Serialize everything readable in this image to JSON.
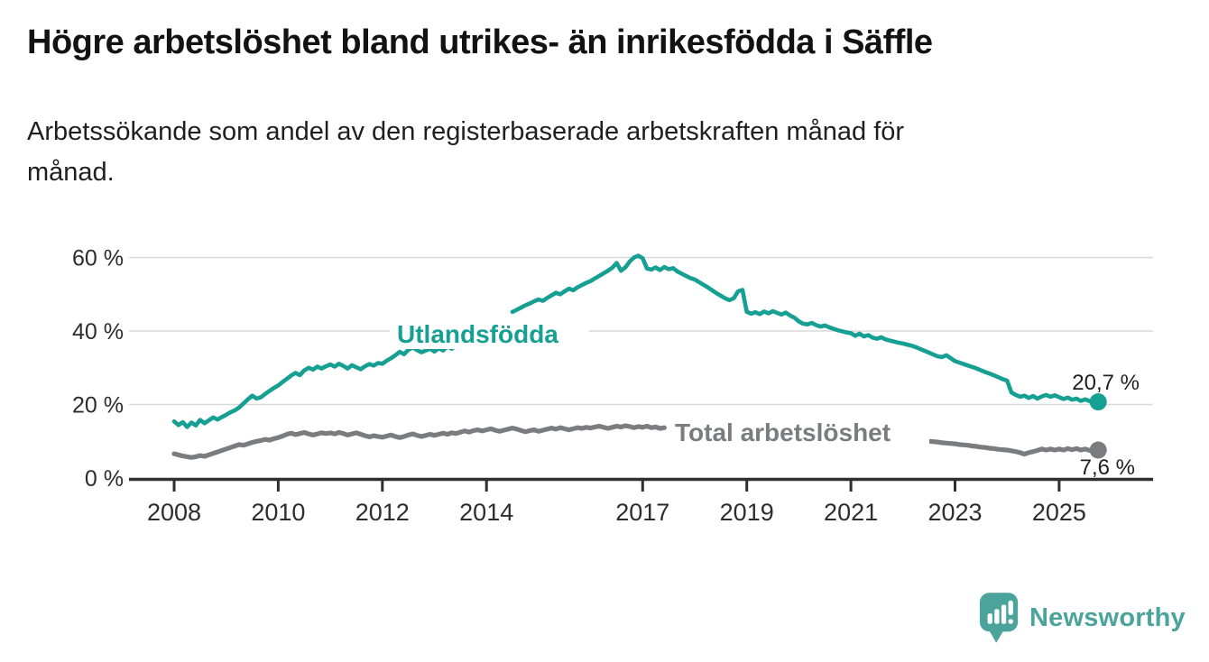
{
  "chart_data": {
    "type": "line",
    "title": "Högre arbetslöshet bland utrikes- än inrikesfödda i Säffle",
    "subtitle": "Arbetssökande som andel av den registerbaserade arbetskraften månad för månad.",
    "subtitle_lines": [
      "Arbetssökande som andel av den registerbaserade arbetskraften månad för",
      "månad."
    ],
    "x_start": "2008-01",
    "x_end": "2025-10",
    "months_per_point": 1,
    "x_ticks": [
      {
        "year": 2008,
        "label": "2008"
      },
      {
        "year": 2010,
        "label": "2010"
      },
      {
        "year": 2012,
        "label": "2012"
      },
      {
        "year": 2014,
        "label": "2014"
      },
      {
        "year": 2017,
        "label": "2017"
      },
      {
        "year": 2019,
        "label": "2019"
      },
      {
        "year": 2021,
        "label": "2021"
      },
      {
        "year": 2023,
        "label": "2023"
      },
      {
        "year": 2025,
        "label": "2025"
      }
    ],
    "y_ticks": [
      {
        "value": 0,
        "label": "0 %"
      },
      {
        "value": 20,
        "label": "20 %"
      },
      {
        "value": 40,
        "label": "40 %"
      },
      {
        "value": 60,
        "label": "60 %"
      }
    ],
    "ylim": [
      0,
      63
    ],
    "grid": "horizontal",
    "legend_position": "inline-labels",
    "series": [
      {
        "name": "Utlandsfödda",
        "color": "#169f93",
        "end_value": 20.7,
        "end_label": "20,7 %",
        "values": [
          15.4,
          14.4,
          15.2,
          13.9,
          15.1,
          14.3,
          15.8,
          14.9,
          15.7,
          16.5,
          15.9,
          16.6,
          17.2,
          17.9,
          18.4,
          19.2,
          20.3,
          21.4,
          22.4,
          21.6,
          22.0,
          22.9,
          23.7,
          24.5,
          25.2,
          26.1,
          27.0,
          27.9,
          28.6,
          28.0,
          29.3,
          30.0,
          29.5,
          30.3,
          29.8,
          30.4,
          30.9,
          30.3,
          31.1,
          30.5,
          29.8,
          30.7,
          30.1,
          29.6,
          30.4,
          31.0,
          30.6,
          31.3,
          31.1,
          31.9,
          32.6,
          33.4,
          34.3,
          33.7,
          34.9,
          35.5,
          34.8,
          34.2,
          34.7,
          35.2,
          34.4,
          35.3,
          34.7,
          35.8,
          35.2,
          35.9,
          36.3,
          36.0,
          36.6,
          37.1,
          37.8,
          38.6,
          39.5,
          40.6,
          41.7,
          42.8,
          43.8,
          44.6,
          45.2,
          45.8,
          46.4,
          47.0,
          47.5,
          48.1,
          48.6,
          48.2,
          49.0,
          49.7,
          50.4,
          50.0,
          50.8,
          51.5,
          51.1,
          51.9,
          52.5,
          53.1,
          53.6,
          54.3,
          55.0,
          55.7,
          56.4,
          57.2,
          58.5,
          56.4,
          57.3,
          58.9,
          60.0,
          60.5,
          59.8,
          57.0,
          56.7,
          57.3,
          56.6,
          57.4,
          56.8,
          57.1,
          56.2,
          55.6,
          55.0,
          54.4,
          54.0,
          53.3,
          52.6,
          51.9,
          51.1,
          50.3,
          49.6,
          48.9,
          48.4,
          48.9,
          50.8,
          51.2,
          45.2,
          44.7,
          45.1,
          44.6,
          45.3,
          44.8,
          45.4,
          44.9,
          44.5,
          45.0,
          44.2,
          43.6,
          42.6,
          42.0,
          41.8,
          42.2,
          41.6,
          41.2,
          41.5,
          41.0,
          40.6,
          40.2,
          39.9,
          39.6,
          39.4,
          38.7,
          39.3,
          38.5,
          38.9,
          38.2,
          37.9,
          38.3,
          37.7,
          37.4,
          37.1,
          36.8,
          36.6,
          36.3,
          36.0,
          35.6,
          35.1,
          34.6,
          34.1,
          33.6,
          33.1,
          32.9,
          33.4,
          32.6,
          31.8,
          31.4,
          31.0,
          30.6,
          30.2,
          29.8,
          29.3,
          28.8,
          28.4,
          27.9,
          27.4,
          26.9,
          26.5,
          23.3,
          22.6,
          22.1,
          22.4,
          21.8,
          22.3,
          21.6,
          22.2,
          22.6,
          22.1,
          22.5,
          22.0,
          21.5,
          21.9,
          21.3,
          21.6,
          21.0,
          21.4,
          20.9,
          21.3,
          20.7
        ]
      },
      {
        "name": "Total arbetslöshet",
        "color": "#7b7c80",
        "end_value": 7.6,
        "end_label": "7,6 %",
        "values": [
          6.6,
          6.3,
          6.0,
          5.8,
          5.6,
          5.8,
          6.1,
          5.9,
          6.3,
          6.7,
          7.1,
          7.5,
          7.9,
          8.3,
          8.7,
          9.1,
          8.9,
          9.3,
          9.7,
          10.0,
          10.2,
          10.5,
          10.3,
          10.7,
          11.0,
          11.4,
          11.9,
          12.2,
          11.8,
          12.1,
          12.4,
          12.0,
          11.7,
          12.0,
          12.3,
          12.1,
          12.3,
          12.0,
          12.4,
          12.1,
          11.7,
          12.0,
          12.3,
          11.9,
          11.5,
          11.2,
          11.5,
          11.3,
          11.1,
          11.4,
          11.7,
          11.3,
          11.0,
          11.3,
          11.7,
          12.0,
          11.6,
          11.3,
          11.6,
          11.9,
          11.6,
          11.9,
          12.2,
          11.9,
          12.3,
          12.1,
          12.5,
          12.8,
          12.5,
          12.9,
          13.1,
          12.8,
          13.1,
          13.4,
          13.0,
          12.7,
          13.0,
          13.3,
          13.6,
          13.3,
          12.9,
          12.6,
          12.9,
          13.1,
          12.7,
          13.0,
          13.3,
          13.6,
          13.3,
          13.7,
          13.4,
          13.1,
          13.4,
          13.7,
          13.5,
          13.8,
          13.6,
          13.9,
          14.1,
          13.8,
          13.5,
          13.8,
          14.1,
          13.9,
          14.2,
          14.0,
          13.7,
          14.0,
          13.8,
          14.1,
          13.7,
          13.9,
          13.5,
          13.7,
          13.4,
          13.6,
          13.3,
          13.5,
          13.2,
          13.4,
          13.2,
          13.0,
          13.1,
          12.9,
          12.7,
          12.8,
          12.6,
          12.7,
          12.5,
          12.6,
          12.4,
          12.5,
          12.3,
          12.4,
          12.2,
          12.0,
          12.1,
          11.9,
          12.0,
          11.8,
          11.9,
          11.7,
          11.8,
          11.6,
          11.7,
          11.8,
          12.0,
          12.3,
          12.1,
          12.2,
          12.0,
          11.9,
          11.7,
          11.6,
          11.4,
          11.5,
          11.3,
          11.4,
          11.2,
          11.0,
          11.1,
          10.9,
          10.8,
          10.9,
          10.7,
          10.6,
          10.7,
          10.5,
          10.6,
          10.4,
          10.5,
          10.3,
          10.4,
          10.2,
          10.0,
          9.9,
          9.8,
          9.6,
          9.5,
          9.4,
          9.3,
          9.1,
          9.0,
          8.9,
          8.7,
          8.6,
          8.4,
          8.3,
          8.1,
          8.0,
          7.8,
          7.7,
          7.6,
          7.4,
          7.2,
          6.9,
          6.5,
          6.9,
          7.2,
          7.5,
          7.9,
          7.6,
          7.9,
          7.6,
          7.9,
          7.6,
          8.0,
          7.7,
          8.0,
          7.6,
          7.9,
          7.5,
          7.8,
          7.6
        ]
      }
    ]
  },
  "footer": {
    "brand": "Newsworthy",
    "logo_icon": "newsworthy-speech-bubble-barchart-icon"
  },
  "colors": {
    "teal": "#169f93",
    "gray": "#7b7c80",
    "grid": "#d8d8d8",
    "axis": "#2f2f2f",
    "logo_teal": "#4aa49c"
  }
}
